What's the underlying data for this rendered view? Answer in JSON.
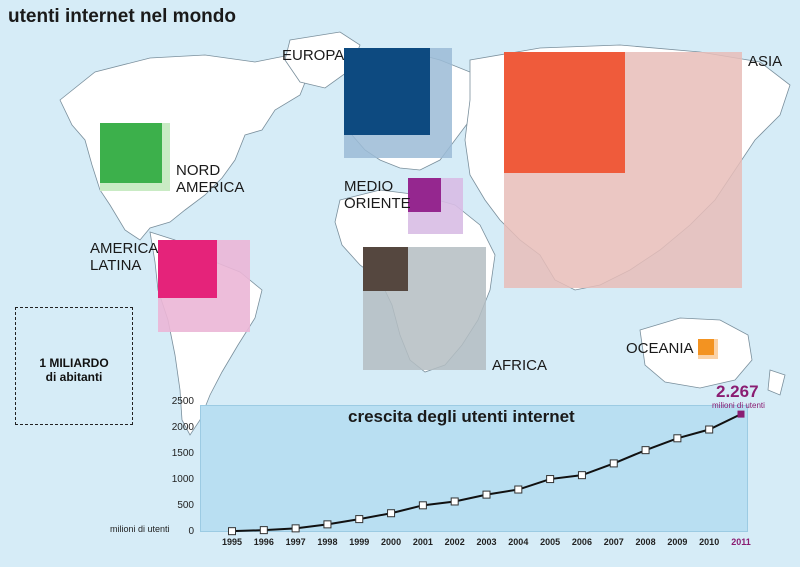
{
  "page": {
    "title": "utenti internet nel mondo"
  },
  "legend": {
    "line1": "1 MILIARDO",
    "line2": "di abitanti"
  },
  "regions": [
    {
      "name": "EUROPA",
      "population_color": "#9bbbd6",
      "users_color": "#0d4a80"
    },
    {
      "name": "ASIA",
      "population_color": "#e7bdb9",
      "users_color": "#ef5b3b"
    },
    {
      "name": "NORD\nAMERICA",
      "population_color": "#c9ebc4",
      "users_color": "#3cb04b"
    },
    {
      "name": "MEDIO\nORIENTE",
      "population_color": "#d8bde4",
      "users_color": "#95278f"
    },
    {
      "name": "AMERICA\nLATINA",
      "population_color": "#ebb6d6",
      "users_color": "#e5237a"
    },
    {
      "name": "AFRICA",
      "population_color": "#b4bdc2",
      "users_color": "#55473f"
    },
    {
      "name": "OCEANIA",
      "population_color": "#fbd2a6",
      "users_color": "#f39321"
    }
  ],
  "chart_data": {
    "type": "line",
    "title": "crescita degli utenti internet",
    "ylabel": "milioni di utenti",
    "ylim": [
      0,
      2500
    ],
    "yticks": [
      "2500",
      "2000",
      "1500",
      "1000",
      "500",
      "0"
    ],
    "x": [
      "1995",
      "1996",
      "1997",
      "1998",
      "1999",
      "2000",
      "2001",
      "2002",
      "2003",
      "2004",
      "2005",
      "2006",
      "2007",
      "2008",
      "2009",
      "2010",
      "2011"
    ],
    "series": [
      {
        "values": [
          16,
          36,
          70,
          147,
          248,
          361,
          513,
          587,
          719,
          817,
          1018,
          1093,
          1319,
          1574,
          1802,
          1971,
          2267
        ]
      }
    ],
    "highlight": {
      "value": "2.267",
      "unit": "milioni di utenti",
      "color": "#8a1d72"
    },
    "line_color": "#111111",
    "panel_color": "#b9dff2"
  }
}
